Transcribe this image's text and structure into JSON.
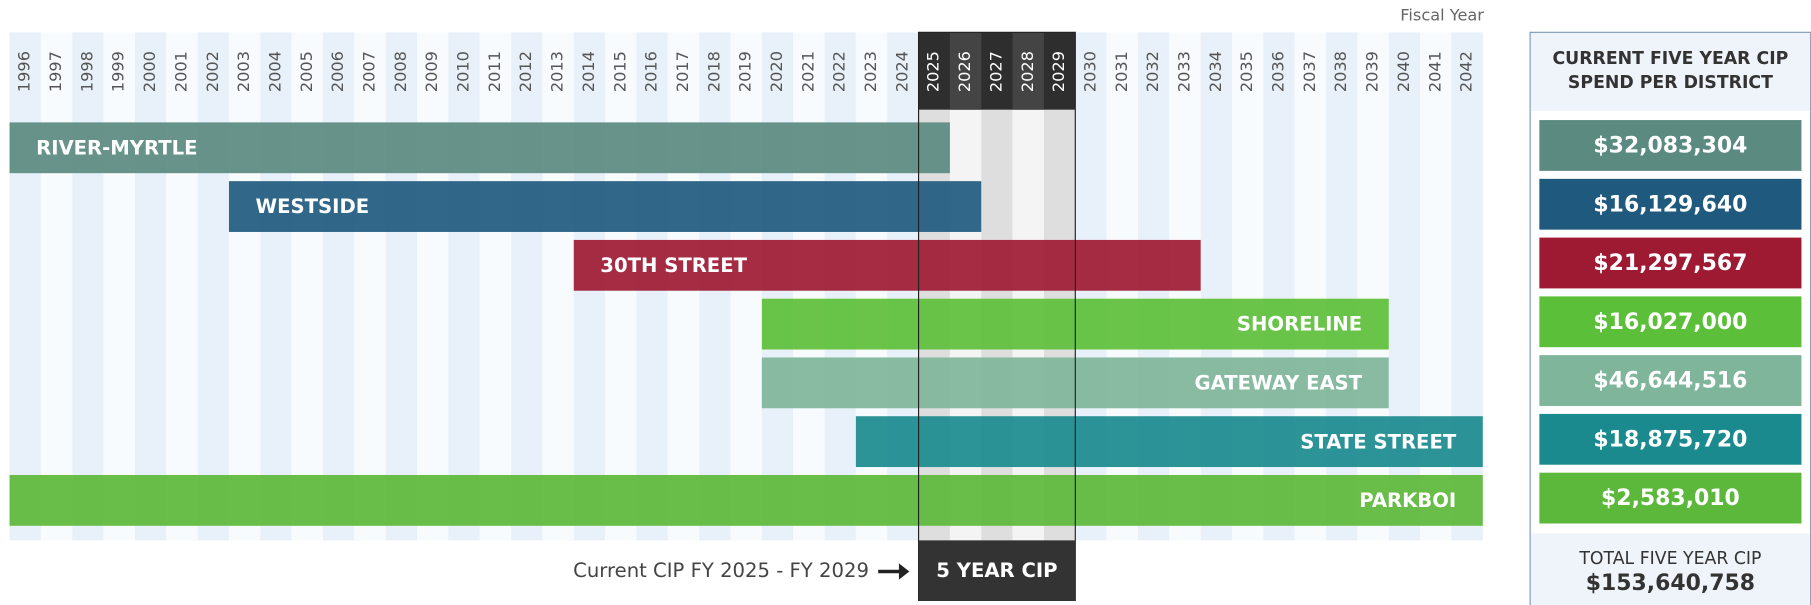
{
  "chart_data": {
    "type": "timeline",
    "axis_label": "Fiscal Year",
    "xticks": [
      1996,
      1997,
      1998,
      1999,
      2000,
      2001,
      2002,
      2003,
      2004,
      2005,
      2006,
      2007,
      2008,
      2009,
      2010,
      2011,
      2012,
      2013,
      2014,
      2015,
      2016,
      2017,
      2018,
      2019,
      2020,
      2021,
      2022,
      2023,
      2024,
      2025,
      2026,
      2027,
      2028,
      2029,
      2030,
      2031,
      2032,
      2033,
      2034,
      2035,
      2036,
      2037,
      2038,
      2039,
      2040,
      2041,
      2042
    ],
    "bars": [
      {
        "name": "RIVER-MYRTLE",
        "start": 1996,
        "end": 2025,
        "color": "#5a8a80",
        "label_side": "left",
        "spend": 32083304,
        "spend_label": "$32,083,304"
      },
      {
        "name": "WESTSIDE",
        "start": 2003,
        "end": 2026,
        "color": "#1f5a7e",
        "label_side": "left",
        "spend": 16129640,
        "spend_label": "$16,129,640"
      },
      {
        "name": "30TH STREET",
        "start": 2014,
        "end": 2033,
        "color": "#9d1a32",
        "label_side": "left",
        "spend": 21297567,
        "spend_label": "$21,297,567"
      },
      {
        "name": "SHORELINE",
        "start": 2020,
        "end": 2039,
        "color": "#5cbf3a",
        "label_side": "right",
        "spend": 16027000,
        "spend_label": "$16,027,000"
      },
      {
        "name": "GATEWAY EAST",
        "start": 2020,
        "end": 2039,
        "color": "#7fb59a",
        "label_side": "right",
        "spend": 46644516,
        "spend_label": "$46,644,516"
      },
      {
        "name": "STATE STREET",
        "start": 2023,
        "end": 2042,
        "color": "#1a8a8e",
        "label_side": "right",
        "spend": 18875720,
        "spend_label": "$18,875,720"
      },
      {
        "name": "PARKBOI",
        "start": 1996,
        "end": 2042,
        "color": "#5cb83a",
        "label_side": "right",
        "spend": 2583010,
        "spend_label": "$2,583,010"
      }
    ],
    "highlight": {
      "start": 2025,
      "end": 2029,
      "label": "5 YEAR CIP",
      "note": "Current CIP FY 2025 - FY 2029"
    },
    "panel": {
      "title_lines": [
        "CURRENT FIVE YEAR CIP",
        "SPEND PER DISTRICT"
      ],
      "total_title": "TOTAL FIVE YEAR CIP",
      "total": 153640758,
      "total_label": "$153,640,758"
    }
  }
}
